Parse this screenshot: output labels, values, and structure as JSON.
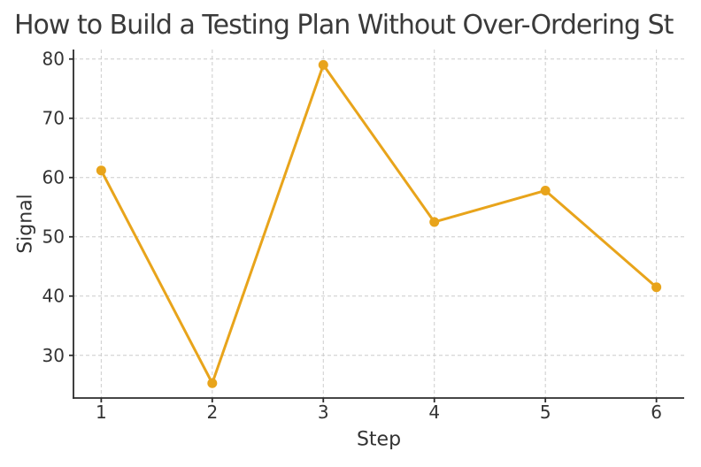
{
  "chart_data": {
    "type": "line",
    "title": "How to Build a Testing Plan Without Over-Ordering St",
    "xlabel": "Step",
    "ylabel": "Signal",
    "x": [
      1,
      2,
      3,
      4,
      5,
      6
    ],
    "values": [
      61.2,
      25.3,
      79.0,
      52.5,
      57.8,
      41.5
    ],
    "series_name": "Signal",
    "xlim": [
      0.75,
      6.25
    ],
    "ylim": [
      22.8,
      81.6
    ],
    "xticks": [
      1,
      2,
      3,
      4,
      5,
      6
    ],
    "yticks": [
      30,
      40,
      50,
      60,
      70,
      80
    ],
    "grid": true,
    "grid_style": "dashed",
    "legend_position": "none",
    "marker": "circle",
    "colors": {
      "line": "#E8A41B",
      "marker": "#E8A41B",
      "grid": "#cccccc",
      "axis": "#2b2b2b",
      "tick_label": "#333333",
      "title": "#3a3a3a",
      "background": "#ffffff"
    }
  }
}
